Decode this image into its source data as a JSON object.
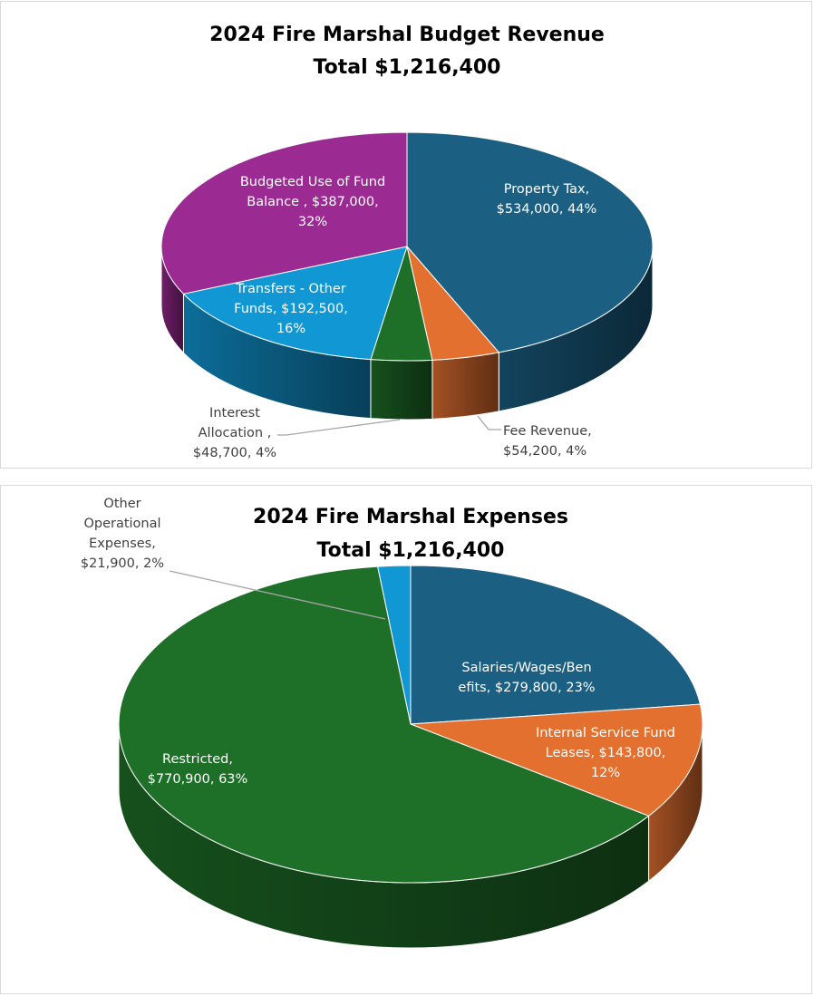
{
  "chart_data": [
    {
      "type": "pie",
      "style": "3d",
      "title": "2024 Fire Marshal Budget Revenue",
      "subtitle": "Total $1,216,400",
      "slices": [
        {
          "name": "Property Tax",
          "value": 534000,
          "label": "Property Tax, $534,000, 44%",
          "label_lines": [
            "Property Tax,",
            "$534,000, 44%"
          ],
          "color": "#1b5f82"
        },
        {
          "name": "Fee Revenue",
          "value": 54200,
          "label": "Fee Revenue, $54,200, 4%",
          "label_lines": [
            "Fee Revenue,",
            "$54,200, 4%"
          ],
          "color": "#e47030"
        },
        {
          "name": "Interest Allocation",
          "value": 48700,
          "label": "Interest Allocation , $48,700, 4%",
          "label_lines": [
            "Interest",
            "Allocation ,",
            "$48,700, 4%"
          ],
          "color": "#1e6f28"
        },
        {
          "name": "Transfers - Other Funds",
          "value": 192500,
          "label": "Transfers - Other Funds, $192,500, 16%",
          "label_lines": [
            "Transfers - Other",
            "Funds, $192,500,",
            "16%"
          ],
          "color": "#1197d4"
        },
        {
          "name": "Budgeted Use of Fund Balance",
          "value": 387000,
          "label": "Budgeted Use of Fund Balance , $387,000, 32%",
          "label_lines": [
            "Budgeted Use of Fund",
            "Balance , $387,000,",
            "32%"
          ],
          "color": "#9b2a93"
        }
      ]
    },
    {
      "type": "pie",
      "style": "3d",
      "title": "2024 Fire Marshal Expenses",
      "subtitle": "Total $1,216,400",
      "slices": [
        {
          "name": "Salaries/Wages/Benefits",
          "value": 279800,
          "label": "Salaries/Wages/Ben efits, $279,800, 23%",
          "label_lines": [
            "Salaries/Wages/Ben",
            "efits, $279,800, 23%"
          ],
          "color": "#1b5f82"
        },
        {
          "name": "Internal Service Fund Leases",
          "value": 143800,
          "label": "Internal Service Fund Leases, $143,800, 12%",
          "label_lines": [
            "Internal Service Fund",
            "Leases, $143,800,",
            "12%"
          ],
          "color": "#e47030"
        },
        {
          "name": "Restricted",
          "value": 770900,
          "label": "Restricted, $770,900, 63%",
          "label_lines": [
            "Restricted,",
            "$770,900, 63%"
          ],
          "color": "#1e6f28"
        },
        {
          "name": "Other Operational Expenses",
          "value": 21900,
          "label": "Other Operational Expenses, $21,900, 2%",
          "label_lines": [
            "Other",
            "Operational",
            "Expenses,",
            "$21,900, 2%"
          ],
          "color": "#1197d4"
        }
      ]
    }
  ]
}
